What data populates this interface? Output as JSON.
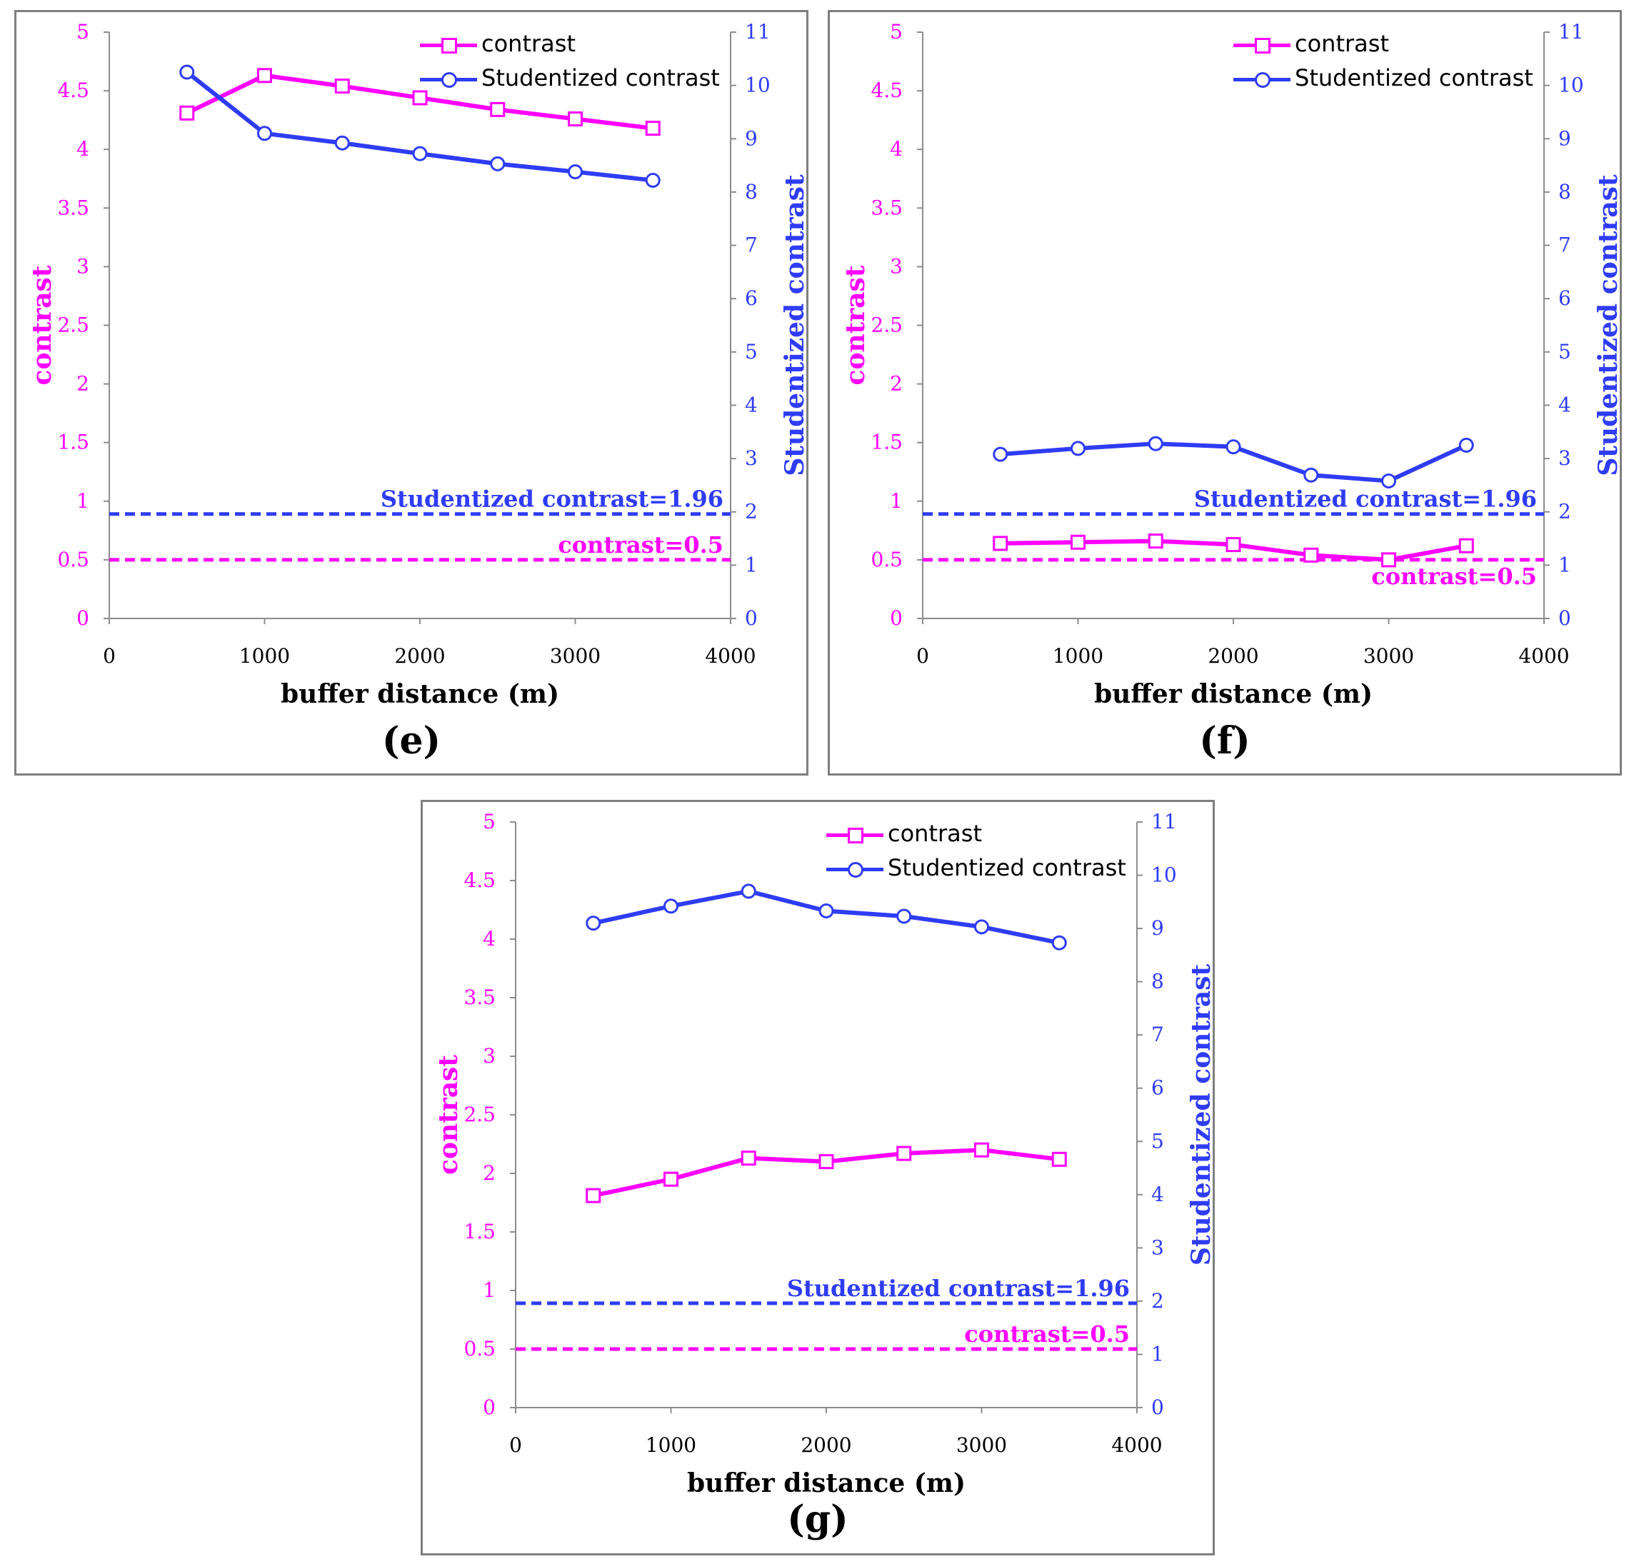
{
  "colors": {
    "contrast": "#ff00ff",
    "studentized": "#2f3cf5",
    "axis": "#8c8c8c"
  },
  "chart_data": [
    {
      "id": "e",
      "type": "line",
      "caption": "(e)",
      "xlabel": "buffer distance (m)",
      "ylabel_left": "contrast",
      "ylabel_right": "Studentized contrast",
      "xlim": [
        0,
        4000
      ],
      "xticks": [
        "0",
        "1000",
        "2000",
        "3000",
        "4000"
      ],
      "ylim_left": [
        0,
        5
      ],
      "yticks_left": [
        "0",
        "0.5",
        "1",
        "1.5",
        "2",
        "2.5",
        "3",
        "3.5",
        "4",
        "4.5",
        "5"
      ],
      "ylim_right": [
        0,
        11
      ],
      "yticks_right": [
        "0",
        "1",
        "2",
        "3",
        "4",
        "5",
        "6",
        "7",
        "8",
        "9",
        "10",
        "11"
      ],
      "legend": [
        "contrast",
        "Studentized contrast"
      ],
      "x": [
        500,
        1000,
        1500,
        2000,
        2500,
        3000,
        3500
      ],
      "series": [
        {
          "name": "contrast",
          "axis": "left",
          "marker": "square",
          "values": [
            4.31,
            4.63,
            4.54,
            4.44,
            4.34,
            4.26,
            4.18
          ]
        },
        {
          "name": "Studentized contrast",
          "axis": "right",
          "marker": "circle",
          "values": [
            10.25,
            9.1,
            8.92,
            8.72,
            8.53,
            8.38,
            8.22
          ]
        }
      ],
      "thresholds": [
        {
          "label": "Studentized contrast=1.96",
          "axis": "right",
          "value": 1.96,
          "color": "studentized",
          "label_pos": "above"
        },
        {
          "label": "contrast=0.5",
          "axis": "left",
          "value": 0.5,
          "color": "contrast",
          "label_pos": "above"
        }
      ]
    },
    {
      "id": "f",
      "type": "line",
      "caption": "(f)",
      "xlabel": "buffer distance (m)",
      "ylabel_left": "contrast",
      "ylabel_right": "Studentized contrast",
      "xlim": [
        0,
        4000
      ],
      "xticks": [
        "0",
        "1000",
        "2000",
        "3000",
        "4000"
      ],
      "ylim_left": [
        0,
        5
      ],
      "yticks_left": [
        "0",
        "0.5",
        "1",
        "1.5",
        "2",
        "2.5",
        "3",
        "3.5",
        "4",
        "4.5",
        "5"
      ],
      "ylim_right": [
        0,
        11
      ],
      "yticks_right": [
        "0",
        "1",
        "2",
        "3",
        "4",
        "5",
        "6",
        "7",
        "8",
        "9",
        "10",
        "11"
      ],
      "legend": [
        "contrast",
        "Studentized contrast"
      ],
      "x": [
        500,
        1000,
        1500,
        2000,
        2500,
        3000,
        3500
      ],
      "series": [
        {
          "name": "contrast",
          "axis": "left",
          "marker": "square",
          "values": [
            0.64,
            0.65,
            0.66,
            0.63,
            0.54,
            0.5,
            0.62
          ]
        },
        {
          "name": "Studentized contrast",
          "axis": "right",
          "marker": "circle",
          "values": [
            3.08,
            3.19,
            3.28,
            3.22,
            2.69,
            2.58,
            3.25
          ]
        }
      ],
      "thresholds": [
        {
          "label": "Studentized contrast=1.96",
          "axis": "right",
          "value": 1.96,
          "color": "studentized",
          "label_pos": "above"
        },
        {
          "label": "contrast=0.5",
          "axis": "left",
          "value": 0.5,
          "color": "contrast",
          "label_pos": "below"
        }
      ]
    },
    {
      "id": "g",
      "type": "line",
      "caption": "(g)",
      "xlabel": "buffer distance (m)",
      "ylabel_left": "contrast",
      "ylabel_right": "Studentized contrast",
      "xlim": [
        0,
        4000
      ],
      "xticks": [
        "0",
        "1000",
        "2000",
        "3000",
        "4000"
      ],
      "ylim_left": [
        0,
        5
      ],
      "yticks_left": [
        "0",
        "0.5",
        "1",
        "1.5",
        "2",
        "2.5",
        "3",
        "3.5",
        "4",
        "4.5",
        "5"
      ],
      "ylim_right": [
        0,
        11
      ],
      "yticks_right": [
        "0",
        "1",
        "2",
        "3",
        "4",
        "5",
        "6",
        "7",
        "8",
        "9",
        "10",
        "11"
      ],
      "legend": [
        "contrast",
        "Studentized contrast"
      ],
      "x": [
        500,
        1000,
        1500,
        2000,
        2500,
        3000,
        3500
      ],
      "series": [
        {
          "name": "contrast",
          "axis": "left",
          "marker": "square",
          "values": [
            1.81,
            1.95,
            2.13,
            2.1,
            2.17,
            2.2,
            2.12
          ]
        },
        {
          "name": "Studentized contrast",
          "axis": "right",
          "marker": "circle",
          "values": [
            9.1,
            9.42,
            9.7,
            9.33,
            9.23,
            9.03,
            8.73
          ]
        }
      ],
      "thresholds": [
        {
          "label": "Studentized contrast=1.96",
          "axis": "right",
          "value": 1.96,
          "color": "studentized",
          "label_pos": "above"
        },
        {
          "label": "contrast=0.5",
          "axis": "left",
          "value": 0.5,
          "color": "contrast",
          "label_pos": "above"
        }
      ]
    }
  ]
}
